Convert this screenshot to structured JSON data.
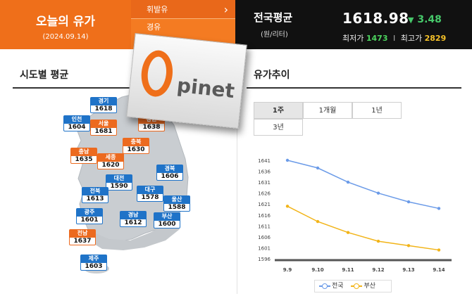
{
  "header": {
    "today_title": "오늘의 유가",
    "today_date": "(2024.09.14)",
    "fuel_tabs": [
      {
        "label": "휘발유"
      },
      {
        "label": "경유"
      }
    ],
    "national": {
      "title": "전국평균",
      "unit": "(원/리터)",
      "price": "1618.98",
      "change_arrow": "▼",
      "change": "3.48",
      "min_label": "최저가",
      "min_value": "1473",
      "sep": "I",
      "max_label": "최고가",
      "max_value": "2829"
    }
  },
  "logo": {
    "text": "pinet",
    "brand": "Opinet"
  },
  "regional": {
    "title": "시도별 평균",
    "markers": [
      {
        "name": "경기",
        "price": "1618",
        "color": "blue"
      },
      {
        "name": "인천",
        "price": "1604",
        "color": "blue"
      },
      {
        "name": "서울",
        "price": "1681",
        "color": "orange"
      },
      {
        "name": "강원",
        "price": "1638",
        "color": "orange"
      },
      {
        "name": "충북",
        "price": "1630",
        "color": "orange"
      },
      {
        "name": "충남",
        "price": "1635",
        "color": "orange"
      },
      {
        "name": "세종",
        "price": "1620",
        "color": "orange"
      },
      {
        "name": "경북",
        "price": "1606",
        "color": "blue"
      },
      {
        "name": "대전",
        "price": "1590",
        "color": "blue"
      },
      {
        "name": "전북",
        "price": "1613",
        "color": "blue"
      },
      {
        "name": "대구",
        "price": "1578",
        "color": "blue"
      },
      {
        "name": "울산",
        "price": "1588",
        "color": "blue"
      },
      {
        "name": "광주",
        "price": "1601",
        "color": "blue"
      },
      {
        "name": "경남",
        "price": "1612",
        "color": "blue"
      },
      {
        "name": "부산",
        "price": "1600",
        "color": "blue"
      },
      {
        "name": "전남",
        "price": "1637",
        "color": "orange"
      },
      {
        "name": "제주",
        "price": "1603",
        "color": "blue"
      }
    ]
  },
  "trend": {
    "title": "유가추이",
    "tabs": [
      {
        "label": "1주",
        "active": true
      },
      {
        "label": "1개월",
        "active": false
      },
      {
        "label": "1년",
        "active": false
      },
      {
        "label": "3년",
        "active": false
      }
    ],
    "legend": [
      {
        "label": "전국"
      },
      {
        "label": "부산"
      }
    ]
  },
  "colors": {
    "brand_orange": "#ef6f1a",
    "marker_blue": "#1f73c8",
    "marker_orange": "#ec6a1f",
    "series_national": "#6b9be8",
    "series_busan": "#f2b418",
    "min_green": "#4cd35e",
    "max_yellow": "#f6c229"
  },
  "chart_data": {
    "type": "line",
    "categories": [
      "9.9",
      "9.10",
      "9.11",
      "9.12",
      "9.13",
      "9.14"
    ],
    "series": [
      {
        "name": "전국",
        "values": [
          1641,
          1637.5,
          1631,
          1626,
          1622,
          1619
        ]
      },
      {
        "name": "부산",
        "values": [
          1620,
          1613,
          1608,
          1604,
          1602,
          1600
        ]
      }
    ],
    "yticks": [
      1641,
      1636,
      1631,
      1626,
      1621,
      1616,
      1611,
      1606,
      1601,
      1596
    ],
    "ylim": [
      1596,
      1641
    ],
    "xlabel": "",
    "ylabel": "",
    "title": "",
    "grid": false,
    "legend_position": "bottom"
  }
}
